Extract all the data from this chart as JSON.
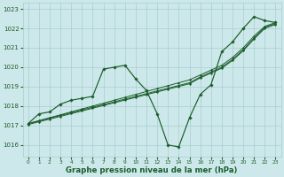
{
  "bg_color": "#cde8ea",
  "grid_color": "#a8cdd0",
  "line_color": "#1a5c2a",
  "marker_color": "#1a5c2a",
  "xlabel": "Graphe pression niveau de la mer (hPa)",
  "ylim": [
    1015.4,
    1023.3
  ],
  "yticks": [
    1016,
    1017,
    1018,
    1019,
    1020,
    1021,
    1022,
    1023
  ],
  "xlim": [
    -0.5,
    23.5
  ],
  "xticks": [
    0,
    1,
    2,
    3,
    4,
    5,
    6,
    7,
    8,
    9,
    10,
    11,
    12,
    13,
    14,
    15,
    16,
    17,
    18,
    19,
    20,
    21,
    22,
    23
  ],
  "series_dramatic": [
    1017.1,
    1017.6,
    1017.7,
    1018.1,
    1018.3,
    1018.4,
    1018.5,
    1019.9,
    1020.0,
    1020.1,
    1019.4,
    1018.8,
    1017.6,
    1016.0,
    1015.9,
    1017.4,
    1018.6,
    1019.1,
    1020.8,
    1021.3,
    1022.0,
    1022.6,
    1022.4,
    1022.3
  ],
  "series_linear": [
    [
      1017.1,
      1017.25,
      1017.4,
      1017.55,
      1017.7,
      1017.85,
      1018.0,
      1018.15,
      1018.3,
      1018.45,
      1018.6,
      1018.75,
      1018.9,
      1019.05,
      1019.2,
      1019.35,
      1019.6,
      1019.85,
      1020.1,
      1020.5,
      1021.0,
      1021.6,
      1022.1,
      1022.3
    ],
    [
      1017.1,
      1017.24,
      1017.38,
      1017.52,
      1017.66,
      1017.8,
      1017.94,
      1018.08,
      1018.22,
      1018.36,
      1018.5,
      1018.64,
      1018.78,
      1018.92,
      1019.06,
      1019.2,
      1019.5,
      1019.75,
      1020.0,
      1020.4,
      1020.9,
      1021.5,
      1022.05,
      1022.25
    ],
    [
      1017.05,
      1017.19,
      1017.33,
      1017.47,
      1017.61,
      1017.75,
      1017.89,
      1018.03,
      1018.17,
      1018.31,
      1018.45,
      1018.59,
      1018.73,
      1018.87,
      1019.01,
      1019.15,
      1019.45,
      1019.7,
      1019.95,
      1020.35,
      1020.85,
      1021.45,
      1022.0,
      1022.2
    ]
  ]
}
